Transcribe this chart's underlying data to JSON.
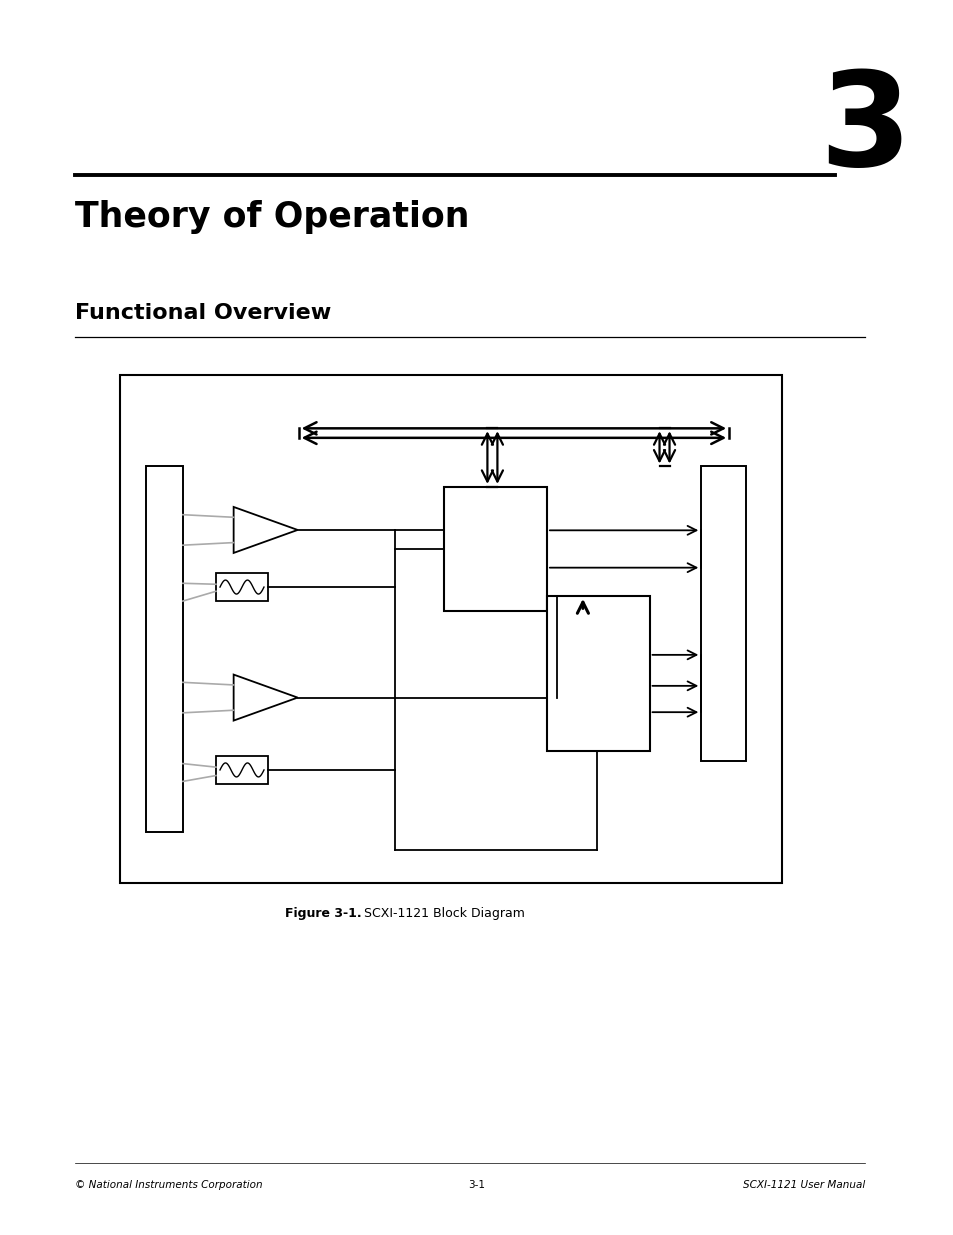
{
  "bg_color": "#ffffff",
  "title_number": "3",
  "title_text": "Theory of Operation",
  "section_title": "Functional Overview",
  "figure_caption_bold": "Figure 3-1.",
  "figure_caption_normal": "  SCXI-1121 Block Diagram",
  "footer_left": "© National Instruments Corporation",
  "footer_center": "3-1",
  "footer_right": "SCXI-1121 User Manual",
  "page_width": 9.54,
  "page_height": 12.35
}
